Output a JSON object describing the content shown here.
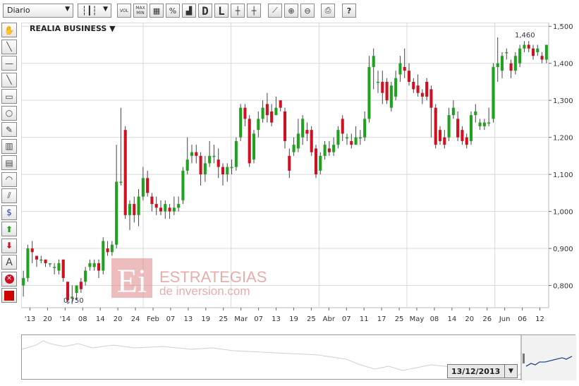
{
  "toolbar": {
    "period_select": "Diario",
    "buttons": [
      "VOL",
      "MAX MIN",
      "D",
      "L"
    ],
    "icons": [
      "candlestick-icon",
      "grid-icon",
      "percent-icon",
      "histogram-icon",
      "crosshair-icon",
      "crosshair-label-icon",
      "linechart-icon",
      "zoom-in-icon",
      "zoom-out-icon",
      "print-icon",
      "help-icon"
    ]
  },
  "sidebar": {
    "tools": [
      "hand-icon",
      "trendline-icon",
      "horizontal-line-icon",
      "diagonal-line-icon",
      "rectangle-icon",
      "circle-icon",
      "pencil-icon",
      "fibonacci-icon",
      "levels-icon",
      "arc-icon",
      "channel-icon",
      "dollar-channel-icon",
      "up-arrow-icon",
      "down-arrow-icon",
      "text-icon",
      "delete-icon",
      "color-picker-icon"
    ]
  },
  "chart": {
    "title": "REALIA BUSINESS ▼",
    "watermark_line1": "ESTRATEGIAS",
    "watermark_line2": "de inversion.com",
    "watermark_logo": "Ei",
    "max_label": "1,460",
    "min_label": "0,750"
  },
  "navigator": {
    "date": "13/12/2013"
  },
  "chart_data": {
    "type": "candlestick",
    "title": "REALIA BUSINESS",
    "ylim": [
      0.74,
      1.51
    ],
    "y_ticks": [
      "0,800",
      "0,900",
      "1,000",
      "1,100",
      "1,200",
      "1,300",
      "1,400",
      "1,500"
    ],
    "x_tick_labels": [
      "'13",
      "20",
      "'14",
      "08",
      "14",
      "20",
      "24",
      "Feb",
      "07",
      "13",
      "19",
      "25",
      "Mar",
      "07",
      "13",
      "19",
      "25",
      "Abr",
      "07",
      "11",
      "17",
      "25",
      "May",
      "08",
      "14",
      "20",
      "26",
      "Jun",
      "06",
      "12"
    ],
    "candles": [
      {
        "o": 0.8,
        "c": 0.82,
        "h": 0.84,
        "l": 0.77
      },
      {
        "o": 0.82,
        "c": 0.9,
        "h": 0.91,
        "l": 0.81
      },
      {
        "o": 0.9,
        "c": 0.89,
        "h": 0.92,
        "l": 0.86
      },
      {
        "o": 0.88,
        "c": 0.87,
        "h": 0.88,
        "l": 0.85
      },
      {
        "o": 0.87,
        "c": 0.87,
        "h": 0.88,
        "l": 0.86
      },
      {
        "o": 0.87,
        "c": 0.86,
        "h": 0.87,
        "l": 0.85
      },
      {
        "o": 0.86,
        "c": 0.86,
        "h": 0.86,
        "l": 0.85
      },
      {
        "o": 0.85,
        "c": 0.85,
        "h": 0.86,
        "l": 0.83
      },
      {
        "o": 0.84,
        "c": 0.86,
        "h": 0.87,
        "l": 0.83
      },
      {
        "o": 0.87,
        "c": 0.82,
        "h": 0.87,
        "l": 0.81
      },
      {
        "o": 0.81,
        "c": 0.76,
        "h": 0.81,
        "l": 0.75
      },
      {
        "o": 0.77,
        "c": 0.77,
        "h": 0.8,
        "l": 0.75
      },
      {
        "o": 0.78,
        "c": 0.8,
        "h": 0.8,
        "l": 0.76
      },
      {
        "o": 0.81,
        "c": 0.79,
        "h": 0.82,
        "l": 0.78
      },
      {
        "o": 0.81,
        "c": 0.84,
        "h": 0.85,
        "l": 0.8
      },
      {
        "o": 0.85,
        "c": 0.86,
        "h": 0.87,
        "l": 0.84
      },
      {
        "o": 0.85,
        "c": 0.86,
        "h": 0.87,
        "l": 0.84
      },
      {
        "o": 0.86,
        "c": 0.84,
        "h": 0.87,
        "l": 0.82
      },
      {
        "o": 0.84,
        "c": 0.92,
        "h": 0.93,
        "l": 0.83
      },
      {
        "o": 0.9,
        "c": 0.89,
        "h": 0.92,
        "l": 0.88
      },
      {
        "o": 0.89,
        "c": 0.91,
        "h": 0.92,
        "l": 0.88
      },
      {
        "o": 0.91,
        "c": 1.08,
        "h": 1.18,
        "l": 0.9
      },
      {
        "o": 1.08,
        "c": 1.08,
        "h": 1.28,
        "l": 1.07
      },
      {
        "o": 1.22,
        "c": 0.99,
        "h": 1.23,
        "l": 0.98
      },
      {
        "o": 0.99,
        "c": 1.02,
        "h": 1.03,
        "l": 0.95
      },
      {
        "o": 1.02,
        "c": 0.99,
        "h": 1.04,
        "l": 0.97
      },
      {
        "o": 0.99,
        "c": 1.04,
        "h": 1.06,
        "l": 0.96
      },
      {
        "o": 1.04,
        "c": 1.09,
        "h": 1.12,
        "l": 1.03
      },
      {
        "o": 1.09,
        "c": 1.05,
        "h": 1.11,
        "l": 1.04
      },
      {
        "o": 1.04,
        "c": 1.02,
        "h": 1.05,
        "l": 1.0
      },
      {
        "o": 1.02,
        "c": 1.01,
        "h": 1.04,
        "l": 0.99
      },
      {
        "o": 1.01,
        "c": 1.0,
        "h": 1.03,
        "l": 0.99
      },
      {
        "o": 1.0,
        "c": 1.02,
        "h": 1.03,
        "l": 0.98
      },
      {
        "o": 1.01,
        "c": 1.0,
        "h": 1.02,
        "l": 0.98
      },
      {
        "o": 1.0,
        "c": 1.01,
        "h": 1.04,
        "l": 0.99
      },
      {
        "o": 1.01,
        "c": 1.02,
        "h": 1.04,
        "l": 1.0
      },
      {
        "o": 1.03,
        "c": 1.11,
        "h": 1.12,
        "l": 1.02
      },
      {
        "o": 1.11,
        "c": 1.14,
        "h": 1.2,
        "l": 1.1
      },
      {
        "o": 1.15,
        "c": 1.16,
        "h": 1.18,
        "l": 1.13
      },
      {
        "o": 1.16,
        "c": 1.15,
        "h": 1.18,
        "l": 1.13
      },
      {
        "o": 1.15,
        "c": 1.1,
        "h": 1.16,
        "l": 1.07
      },
      {
        "o": 1.1,
        "c": 1.13,
        "h": 1.15,
        "l": 1.08
      },
      {
        "o": 1.13,
        "c": 1.15,
        "h": 1.19,
        "l": 1.12
      },
      {
        "o": 1.15,
        "c": 1.15,
        "h": 1.18,
        "l": 1.13
      },
      {
        "o": 1.14,
        "c": 1.12,
        "h": 1.17,
        "l": 1.09
      },
      {
        "o": 1.12,
        "c": 1.1,
        "h": 1.13,
        "l": 1.07
      },
      {
        "o": 1.1,
        "c": 1.12,
        "h": 1.13,
        "l": 1.08
      },
      {
        "o": 1.12,
        "c": 1.12,
        "h": 1.14,
        "l": 1.1
      },
      {
        "o": 1.12,
        "c": 1.19,
        "h": 1.2,
        "l": 1.11
      },
      {
        "o": 1.2,
        "c": 1.28,
        "h": 1.29,
        "l": 1.19
      },
      {
        "o": 1.28,
        "c": 1.25,
        "h": 1.29,
        "l": 1.23
      },
      {
        "o": 1.25,
        "c": 1.13,
        "h": 1.26,
        "l": 1.12
      },
      {
        "o": 1.14,
        "c": 1.21,
        "h": 1.22,
        "l": 1.13
      },
      {
        "o": 1.22,
        "c": 1.25,
        "h": 1.27,
        "l": 1.2
      },
      {
        "o": 1.25,
        "c": 1.28,
        "h": 1.3,
        "l": 1.24
      },
      {
        "o": 1.29,
        "c": 1.26,
        "h": 1.32,
        "l": 1.24
      },
      {
        "o": 1.27,
        "c": 1.24,
        "h": 1.29,
        "l": 1.23
      },
      {
        "o": 1.26,
        "c": 1.28,
        "h": 1.31,
        "l": 1.26
      },
      {
        "o": 1.3,
        "c": 1.28,
        "h": 1.3,
        "l": 1.27
      },
      {
        "o": 1.27,
        "c": 1.19,
        "h": 1.28,
        "l": 1.17
      },
      {
        "o": 1.15,
        "c": 1.11,
        "h": 1.17,
        "l": 1.09
      },
      {
        "o": 1.16,
        "c": 1.18,
        "h": 1.2,
        "l": 1.15
      },
      {
        "o": 1.17,
        "c": 1.21,
        "h": 1.25,
        "l": 1.16
      },
      {
        "o": 1.2,
        "c": 1.25,
        "h": 1.26,
        "l": 1.18
      },
      {
        "o": 1.22,
        "c": 1.21,
        "h": 1.24,
        "l": 1.19
      },
      {
        "o": 1.22,
        "c": 1.16,
        "h": 1.23,
        "l": 1.15
      },
      {
        "o": 1.17,
        "c": 1.1,
        "h": 1.18,
        "l": 1.09
      },
      {
        "o": 1.11,
        "c": 1.15,
        "h": 1.16,
        "l": 1.1
      },
      {
        "o": 1.15,
        "c": 1.18,
        "h": 1.19,
        "l": 1.14
      },
      {
        "o": 1.17,
        "c": 1.16,
        "h": 1.19,
        "l": 1.15
      },
      {
        "o": 1.16,
        "c": 1.18,
        "h": 1.2,
        "l": 1.15
      },
      {
        "o": 1.18,
        "c": 1.22,
        "h": 1.23,
        "l": 1.17
      },
      {
        "o": 1.25,
        "c": 1.21,
        "h": 1.26,
        "l": 1.19
      },
      {
        "o": 1.2,
        "c": 1.2,
        "h": 1.21,
        "l": 1.18
      },
      {
        "o": 1.19,
        "c": 1.18,
        "h": 1.21,
        "l": 1.17
      },
      {
        "o": 1.18,
        "c": 1.2,
        "h": 1.23,
        "l": 1.18
      },
      {
        "o": 1.2,
        "c": 1.2,
        "h": 1.22,
        "l": 1.18
      },
      {
        "o": 1.2,
        "c": 1.25,
        "h": 1.27,
        "l": 1.19
      },
      {
        "o": 1.25,
        "c": 1.39,
        "h": 1.42,
        "l": 1.24
      },
      {
        "o": 1.39,
        "c": 1.42,
        "h": 1.44,
        "l": 1.33
      },
      {
        "o": 1.35,
        "c": 1.35,
        "h": 1.38,
        "l": 1.32
      },
      {
        "o": 1.35,
        "c": 1.32,
        "h": 1.38,
        "l": 1.29
      },
      {
        "o": 1.35,
        "c": 1.3,
        "h": 1.36,
        "l": 1.29
      },
      {
        "o": 1.28,
        "c": 1.34,
        "h": 1.35,
        "l": 1.27
      },
      {
        "o": 1.31,
        "c": 1.36,
        "h": 1.38,
        "l": 1.3
      },
      {
        "o": 1.37,
        "c": 1.4,
        "h": 1.42,
        "l": 1.35
      },
      {
        "o": 1.39,
        "c": 1.38,
        "h": 1.44,
        "l": 1.36
      },
      {
        "o": 1.38,
        "c": 1.35,
        "h": 1.4,
        "l": 1.34
      },
      {
        "o": 1.35,
        "c": 1.33,
        "h": 1.36,
        "l": 1.32
      },
      {
        "o": 1.34,
        "c": 1.32,
        "h": 1.37,
        "l": 1.31
      },
      {
        "o": 1.32,
        "c": 1.31,
        "h": 1.33,
        "l": 1.29
      },
      {
        "o": 1.35,
        "c": 1.31,
        "h": 1.36,
        "l": 1.3
      },
      {
        "o": 1.33,
        "c": 1.28,
        "h": 1.34,
        "l": 1.2
      },
      {
        "o": 1.28,
        "c": 1.18,
        "h": 1.29,
        "l": 1.17
      },
      {
        "o": 1.22,
        "c": 1.19,
        "h": 1.23,
        "l": 1.18
      },
      {
        "o": 1.2,
        "c": 1.18,
        "h": 1.22,
        "l": 1.17
      },
      {
        "o": 1.2,
        "c": 1.26,
        "h": 1.28,
        "l": 1.19
      },
      {
        "o": 1.26,
        "c": 1.28,
        "h": 1.3,
        "l": 1.25
      },
      {
        "o": 1.25,
        "c": 1.2,
        "h": 1.27,
        "l": 1.19
      },
      {
        "o": 1.22,
        "c": 1.19,
        "h": 1.23,
        "l": 1.18
      },
      {
        "o": 1.2,
        "c": 1.18,
        "h": 1.21,
        "l": 1.17
      },
      {
        "o": 1.19,
        "c": 1.26,
        "h": 1.27,
        "l": 1.18
      },
      {
        "o": 1.26,
        "c": 1.27,
        "h": 1.29,
        "l": 1.24
      },
      {
        "o": 1.23,
        "c": 1.24,
        "h": 1.25,
        "l": 1.22
      },
      {
        "o": 1.23,
        "c": 1.24,
        "h": 1.25,
        "l": 1.22
      },
      {
        "o": 1.24,
        "c": 1.24,
        "h": 1.28,
        "l": 1.23
      },
      {
        "o": 1.25,
        "c": 1.39,
        "h": 1.4,
        "l": 1.24
      },
      {
        "o": 1.39,
        "c": 1.4,
        "h": 1.47,
        "l": 1.35
      },
      {
        "o": 1.38,
        "c": 1.42,
        "h": 1.43,
        "l": 1.36
      },
      {
        "o": 1.43,
        "c": 1.43,
        "h": 1.44,
        "l": 1.41
      },
      {
        "o": 1.4,
        "c": 1.38,
        "h": 1.41,
        "l": 1.36
      },
      {
        "o": 1.38,
        "c": 1.42,
        "h": 1.43,
        "l": 1.37
      },
      {
        "o": 1.4,
        "c": 1.44,
        "h": 1.45,
        "l": 1.39
      },
      {
        "o": 1.44,
        "c": 1.45,
        "h": 1.46,
        "l": 1.43
      },
      {
        "o": 1.45,
        "c": 1.44,
        "h": 1.46,
        "l": 1.43
      },
      {
        "o": 1.44,
        "c": 1.42,
        "h": 1.45,
        "l": 1.41
      },
      {
        "o": 1.43,
        "c": 1.44,
        "h": 1.45,
        "l": 1.42
      },
      {
        "o": 1.42,
        "c": 1.41,
        "h": 1.43,
        "l": 1.4
      },
      {
        "o": 1.41,
        "c": 1.45,
        "h": 1.45,
        "l": 1.4
      }
    ]
  },
  "colors": {
    "up": "#1fa31f",
    "down": "#cc1122",
    "grid": "#d8d8d8",
    "watermark": "#e8a0a0"
  }
}
